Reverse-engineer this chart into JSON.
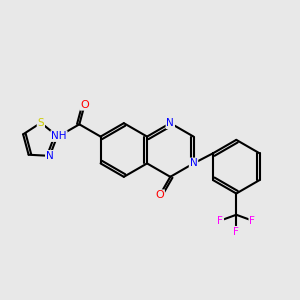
{
  "bg_color": "#e8e8e8",
  "bond_color": "#000000",
  "bond_width": 1.5,
  "atom_colors": {
    "N": "#0000ff",
    "O": "#ff0000",
    "S": "#cccc00",
    "F": "#ff00ff",
    "C": "#000000",
    "H": "#808080"
  },
  "font_size": 7.5,
  "fig_width": 3.0,
  "fig_height": 3.0,
  "dpi": 100
}
